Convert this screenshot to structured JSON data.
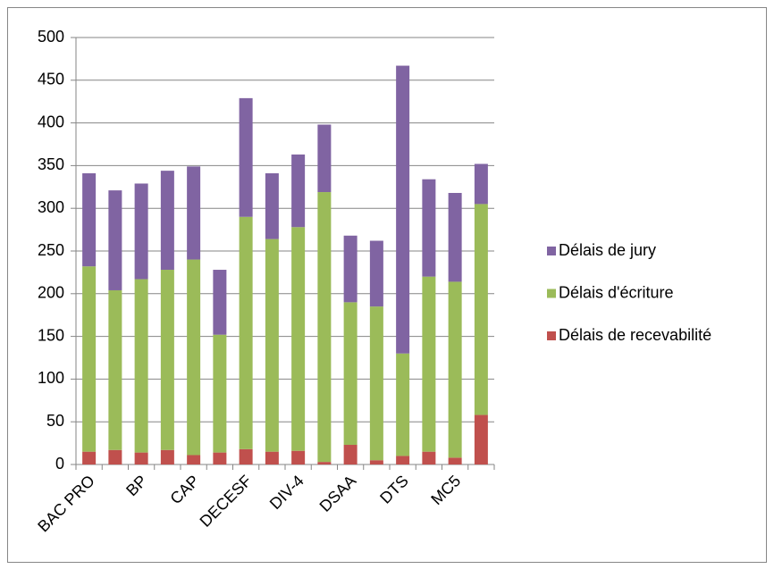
{
  "chart_data": {
    "type": "stacked-bar",
    "categories": [
      "BAC PRO",
      null,
      "BP",
      null,
      "CAP",
      null,
      "DECESF",
      null,
      "DIV-4",
      null,
      "DSAA",
      null,
      "DTS",
      null,
      "MC5",
      null
    ],
    "series": [
      {
        "name": "Délais de recevabilité",
        "color": "#c0504d",
        "values": [
          15,
          17,
          14,
          17,
          11,
          14,
          18,
          15,
          16,
          3,
          23,
          5,
          10,
          15,
          8,
          58
        ]
      },
      {
        "name": "Délais d'écriture",
        "color": "#9bbb59",
        "values": [
          217,
          187,
          203,
          211,
          229,
          138,
          272,
          249,
          262,
          316,
          167,
          180,
          120,
          205,
          206,
          247
        ]
      },
      {
        "name": "Délais de jury",
        "color": "#8064a2",
        "values": [
          109,
          117,
          112,
          116,
          109,
          76,
          139,
          77,
          85,
          79,
          78,
          77,
          337,
          114,
          104,
          47
        ]
      }
    ],
    "ylim": [
      0,
      500
    ],
    "yticks": [
      0,
      50,
      100,
      150,
      200,
      250,
      300,
      350,
      400,
      450,
      500
    ],
    "grid": true,
    "legend": "right"
  }
}
